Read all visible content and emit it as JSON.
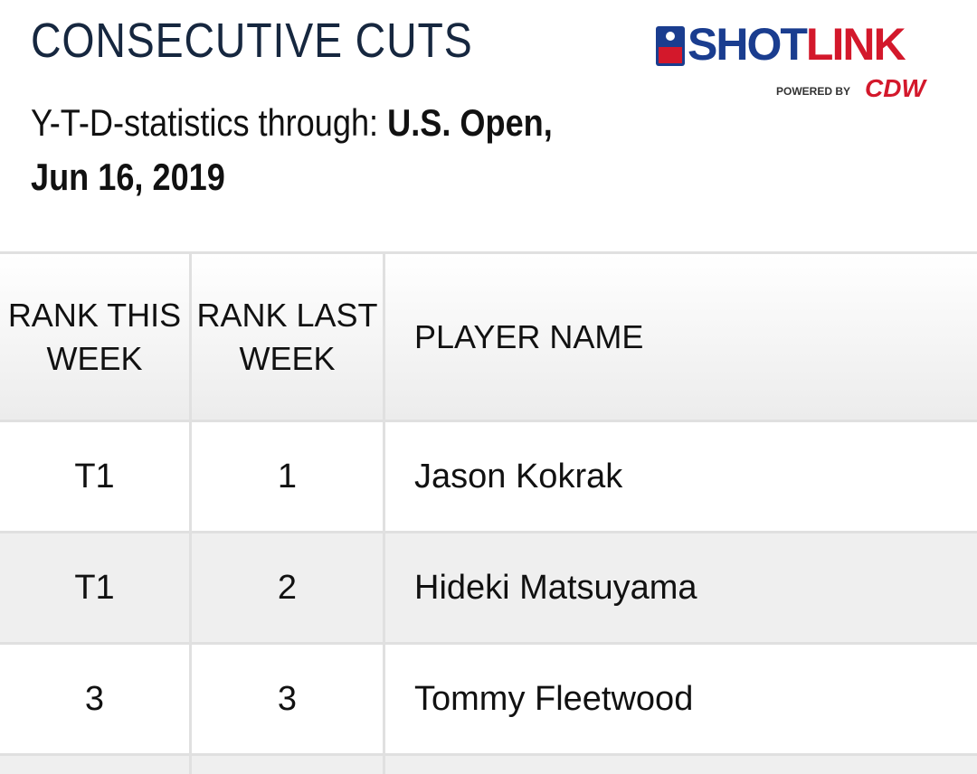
{
  "header": {
    "title": "CONSECUTIVE CUTS",
    "logo": {
      "name_parts": [
        "SHOT",
        "LINK"
      ],
      "powered_by": "POWERED BY",
      "sponsor": "CDW"
    },
    "subtitle": {
      "label": "Y-T-D-statistics through:",
      "event": "U.S. Open,",
      "date": "Jun 16, 2019"
    }
  },
  "table": {
    "columns": [
      "RANK THIS WEEK",
      "RANK LAST WEEK",
      "PLAYER NAME"
    ],
    "rows": [
      [
        "T1",
        "1",
        "Jason Kokrak"
      ],
      [
        "T1",
        "2",
        "Hideki Matsuyama"
      ],
      [
        "3",
        "3",
        "Tommy Fleetwood"
      ]
    ]
  }
}
